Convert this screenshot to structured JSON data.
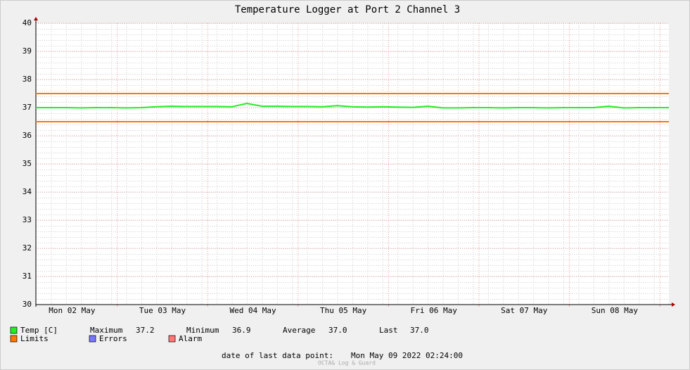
{
  "chart_data": {
    "type": "line",
    "title": "Temperature Logger at Port 2 Channel 3",
    "xlim": [
      "2022-05-02T02:24",
      "2022-05-09T02:24"
    ],
    "xticks": [
      {
        "value": "2022-05-02T12:00",
        "label": "Mon 02 May"
      },
      {
        "value": "2022-05-03T12:00",
        "label": "Tue 03 May"
      },
      {
        "value": "2022-05-04T12:00",
        "label": "Wed 04 May"
      },
      {
        "value": "2022-05-05T12:00",
        "label": "Thu 05 May"
      },
      {
        "value": "2022-05-06T12:00",
        "label": "Fri 06 May"
      },
      {
        "value": "2022-05-07T12:00",
        "label": "Sat 07 May"
      },
      {
        "value": "2022-05-08T12:00",
        "label": "Sun 08 May"
      }
    ],
    "xgrid": [
      "2022-05-03T00:00",
      "2022-05-04T00:00",
      "2022-05-05T00:00",
      "2022-05-06T00:00",
      "2022-05-07T00:00",
      "2022-05-08T00:00",
      "2022-05-09T00:00"
    ],
    "ylim": [
      30,
      40
    ],
    "yticks": [
      30,
      31,
      32,
      33,
      34,
      35,
      36,
      37,
      38,
      39,
      40
    ],
    "grid": true,
    "x": [
      "2022-05-02T02:24",
      "2022-05-02T06:24",
      "2022-05-02T10:24",
      "2022-05-02T14:24",
      "2022-05-02T18:24",
      "2022-05-02T22:24",
      "2022-05-03T02:24",
      "2022-05-03T06:24",
      "2022-05-03T10:24",
      "2022-05-03T14:24",
      "2022-05-03T18:24",
      "2022-05-03T22:24",
      "2022-05-04T02:24",
      "2022-05-04T06:24",
      "2022-05-04T10:24",
      "2022-05-04T14:24",
      "2022-05-04T18:24",
      "2022-05-04T22:24",
      "2022-05-05T02:24",
      "2022-05-05T06:24",
      "2022-05-05T10:24",
      "2022-05-05T14:24",
      "2022-05-05T18:24",
      "2022-05-05T22:24",
      "2022-05-06T02:24",
      "2022-05-06T06:24",
      "2022-05-06T10:24",
      "2022-05-06T14:24",
      "2022-05-06T18:24",
      "2022-05-06T22:24",
      "2022-05-07T02:24",
      "2022-05-07T06:24",
      "2022-05-07T10:24",
      "2022-05-07T14:24",
      "2022-05-07T18:24",
      "2022-05-07T22:24",
      "2022-05-08T02:24",
      "2022-05-08T06:24",
      "2022-05-08T10:24",
      "2022-05-08T14:24",
      "2022-05-08T18:24",
      "2022-05-08T22:24",
      "2022-05-09T02:24"
    ],
    "series": [
      {
        "name": "Temp [C]",
        "color": "#22ee22",
        "values": [
          37.0,
          37.0,
          37.0,
          36.99,
          37.0,
          37.0,
          36.99,
          37.0,
          37.03,
          37.05,
          37.04,
          37.04,
          37.04,
          37.03,
          37.15,
          37.05,
          37.05,
          37.04,
          37.04,
          37.03,
          37.07,
          37.03,
          37.02,
          37.03,
          37.02,
          37.01,
          37.05,
          36.99,
          36.99,
          37.0,
          37.0,
          36.99,
          37.0,
          37.0,
          36.99,
          37.0,
          37.0,
          37.0,
          37.05,
          36.99,
          37.0,
          37.0,
          37.0
        ]
      }
    ],
    "limits": {
      "name": "Limits",
      "color": "#ff7700",
      "values": [
        36.5,
        37.5
      ]
    },
    "legend_extra": [
      {
        "name": "Errors",
        "color": "#7777ff"
      },
      {
        "name": "Alarm",
        "color": "#ff7777"
      }
    ],
    "stats": [
      {
        "name": "Maximum",
        "value": 37.2
      },
      {
        "name": "Minimum",
        "value": 36.9
      },
      {
        "name": "Average",
        "value": 37,
        "label": "37.0"
      },
      {
        "name": "Last",
        "value": 37,
        "label": "37.0"
      }
    ],
    "footer_label": "date of last data point:",
    "footer_value": "Mon May 09 2022 02:24:00",
    "watermark": "OCTA& Log & Guard"
  }
}
